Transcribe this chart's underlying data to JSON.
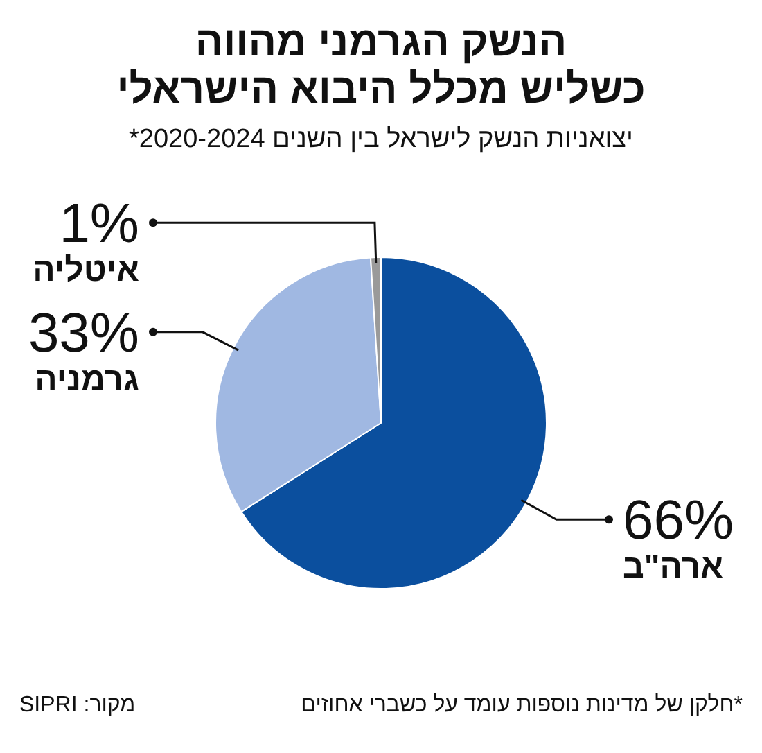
{
  "chart_data": {
    "type": "pie",
    "title": "הנשק הגרמני מהווה\nכשליש מכלל היבוא הישראלי",
    "subtitle": "יצואניות הנשק לישראל בין השנים 2020-2024*",
    "categories": [
      "ארה\"ב",
      "גרמניה",
      "איטליה"
    ],
    "values": [
      66,
      33,
      1
    ],
    "value_labels": [
      "66%",
      "33%",
      "1%"
    ],
    "colors": [
      "#0b4f9e",
      "#a0b8e2",
      "#9a9a9a"
    ],
    "legend": false,
    "annotations": [
      "*חלקן של מדינות נוספות עומד על כשברי אחוזים",
      "מקור: SIPRI"
    ]
  }
}
